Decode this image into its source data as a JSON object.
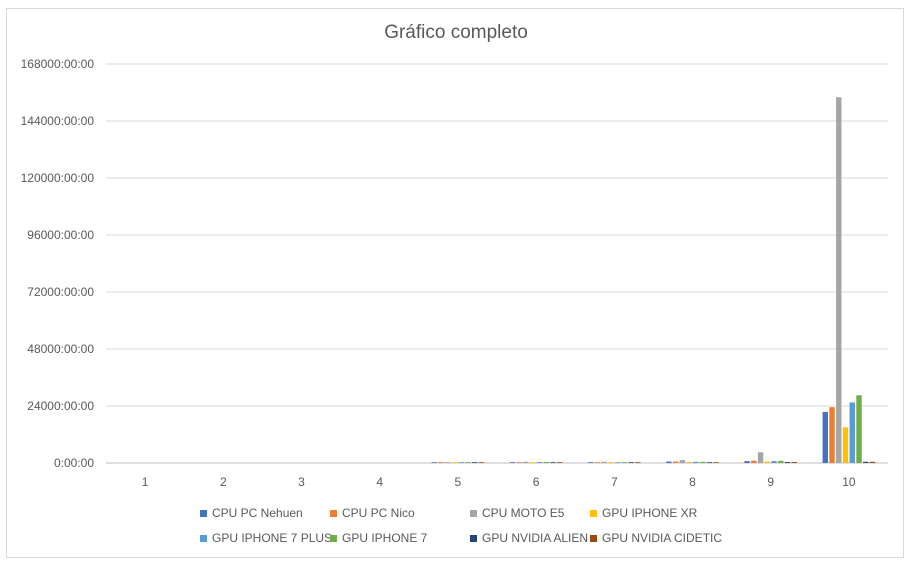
{
  "chart_data": {
    "type": "bar",
    "title": "Gráfico completo",
    "xlabel": "",
    "ylabel": "",
    "categories": [
      "1",
      "2",
      "3",
      "4",
      "5",
      "6",
      "7",
      "8",
      "9",
      "10"
    ],
    "y_unit": "hours",
    "ylim": [
      0,
      168000
    ],
    "y_tick_values": [
      0,
      24000,
      48000,
      72000,
      96000,
      120000,
      144000,
      168000
    ],
    "y_tick_labels": [
      "0:00:00",
      "24000:00:00",
      "48000:00:00",
      "72000:00:00",
      "96000:00:00",
      "120000:00:00",
      "144000:00:00",
      "168000:00:00"
    ],
    "grid": true,
    "legend_position": "bottom",
    "series": [
      {
        "name": "CPU PC Nehuen",
        "color": "#4472c4",
        "values": [
          0,
          0,
          0,
          0,
          150,
          300,
          300,
          600,
          800,
          21500
        ]
      },
      {
        "name": "CPU PC Nico",
        "color": "#ed7d31",
        "values": [
          0,
          0,
          0,
          0,
          150,
          300,
          300,
          600,
          1000,
          23500
        ]
      },
      {
        "name": "CPU MOTO E5",
        "color": "#a5a5a5",
        "values": [
          0,
          0,
          0,
          0,
          300,
          500,
          500,
          1200,
          4500,
          154000
        ]
      },
      {
        "name": "GPU IPHONE XR",
        "color": "#ffc000",
        "values": [
          0,
          0,
          0,
          0,
          150,
          300,
          300,
          400,
          600,
          15000
        ]
      },
      {
        "name": "GPU IPHONE 7 PLUS",
        "color": "#5b9bd5",
        "values": [
          0,
          0,
          0,
          0,
          200,
          400,
          300,
          500,
          800,
          25500
        ]
      },
      {
        "name": "GPU IPHONE 7",
        "color": "#70ad47",
        "values": [
          0,
          0,
          0,
          0,
          200,
          400,
          300,
          500,
          900,
          28500
        ]
      },
      {
        "name": "GPU NVIDIA ALIEN",
        "color": "#264478",
        "values": [
          0,
          0,
          0,
          0,
          50,
          150,
          150,
          300,
          400,
          500
        ]
      },
      {
        "name": "GPU NVIDIA CIDETIC",
        "color": "#9e480e",
        "values": [
          0,
          0,
          0,
          0,
          50,
          150,
          150,
          300,
          400,
          500
        ]
      }
    ]
  }
}
